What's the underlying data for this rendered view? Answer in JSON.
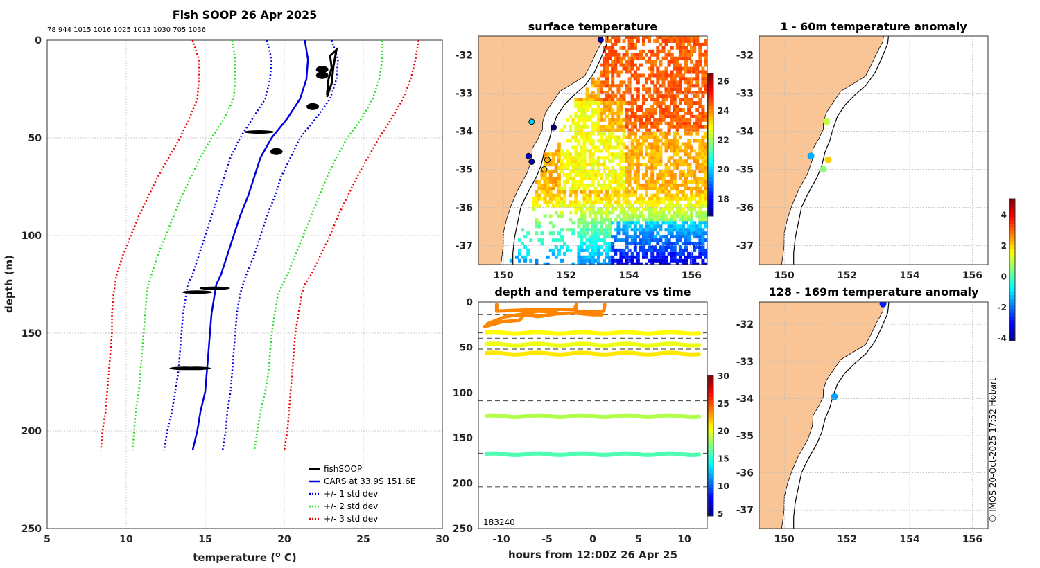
{
  "chart_data": [
    {
      "id": "profile",
      "type": "line",
      "title": "Fish SOOP 26 Apr 2025",
      "subtitle": "78 944 1015 1016 1025 1013 1030 705 1036",
      "xlabel": "temperature (",
      "xlabel_sup": "o",
      "xlabel_end": " C)",
      "ylabel": "depth (m)",
      "xlim": [
        5,
        30
      ],
      "ylim": [
        0,
        250
      ],
      "y_reversed": true,
      "xticks": [
        5,
        10,
        15,
        20,
        25,
        30
      ],
      "yticks": [
        0,
        50,
        100,
        150,
        200,
        250
      ],
      "grid": true,
      "legend_position": "bottom-right",
      "legend": [
        "fishSOOP",
        "CARS at 33.9S 151.6E",
        "+/- 1 std dev",
        "+/- 2 std dev",
        "+/- 3 std dev"
      ],
      "series": [
        {
          "name": "CARS at 33.9S 151.6E",
          "color": "#0000dd",
          "style": "solid",
          "points": [
            [
              21.3,
              0
            ],
            [
              21.5,
              10
            ],
            [
              21.4,
              20
            ],
            [
              21.0,
              30
            ],
            [
              20.2,
              40
            ],
            [
              19.2,
              50
            ],
            [
              18.5,
              60
            ],
            [
              18.1,
              70
            ],
            [
              17.7,
              80
            ],
            [
              17.2,
              90
            ],
            [
              16.8,
              100
            ],
            [
              16.4,
              110
            ],
            [
              16.0,
              120
            ],
            [
              15.7,
              125
            ],
            [
              15.6,
              130
            ],
            [
              15.4,
              140
            ],
            [
              15.3,
              150
            ],
            [
              15.2,
              160
            ],
            [
              15.1,
              170
            ],
            [
              15.0,
              180
            ],
            [
              14.7,
              190
            ],
            [
              14.5,
              200
            ],
            [
              14.2,
              210
            ]
          ]
        },
        {
          "name": "+/- 1 std dev",
          "color": "#0000dd",
          "style": "dotted",
          "points": [
            [
              23.0,
              0
            ],
            [
              23.4,
              10
            ],
            [
              23.3,
              20
            ],
            [
              22.9,
              30
            ],
            [
              22.0,
              40
            ],
            [
              21.0,
              50
            ],
            [
              20.4,
              60
            ],
            [
              19.8,
              70
            ],
            [
              19.4,
              80
            ],
            [
              18.9,
              90
            ],
            [
              18.5,
              100
            ],
            [
              18.1,
              110
            ],
            [
              17.6,
              120
            ],
            [
              17.4,
              125
            ],
            [
              17.2,
              130
            ],
            [
              17.0,
              140
            ],
            [
              16.9,
              150
            ],
            [
              16.8,
              160
            ],
            [
              16.7,
              170
            ],
            [
              16.6,
              180
            ],
            [
              16.4,
              190
            ],
            [
              16.3,
              200
            ],
            [
              16.1,
              210
            ]
          ],
          "points2": [
            [
              18.9,
              0
            ],
            [
              19.2,
              10
            ],
            [
              19.1,
              20
            ],
            [
              18.8,
              30
            ],
            [
              18.0,
              40
            ],
            [
              17.2,
              50
            ],
            [
              16.6,
              60
            ],
            [
              16.2,
              70
            ],
            [
              15.8,
              80
            ],
            [
              15.4,
              90
            ],
            [
              15.0,
              100
            ],
            [
              14.6,
              110
            ],
            [
              14.2,
              120
            ],
            [
              13.9,
              125
            ],
            [
              13.8,
              130
            ],
            [
              13.6,
              140
            ],
            [
              13.5,
              150
            ],
            [
              13.4,
              160
            ],
            [
              13.3,
              170
            ],
            [
              13.1,
              180
            ],
            [
              12.9,
              190
            ],
            [
              12.6,
              200
            ],
            [
              12.4,
              210
            ]
          ]
        },
        {
          "name": "+/- 2 std dev",
          "color": "#22dd22",
          "style": "dotted",
          "points": [
            [
              26.2,
              0
            ],
            [
              26.2,
              10
            ],
            [
              26.0,
              20
            ],
            [
              25.6,
              30
            ],
            [
              24.9,
              40
            ],
            [
              24.0,
              50
            ],
            [
              23.3,
              60
            ],
            [
              22.7,
              70
            ],
            [
              22.2,
              80
            ],
            [
              21.7,
              90
            ],
            [
              21.2,
              100
            ],
            [
              20.7,
              110
            ],
            [
              20.2,
              120
            ],
            [
              19.9,
              125
            ],
            [
              19.6,
              130
            ],
            [
              19.4,
              140
            ],
            [
              19.2,
              150
            ],
            [
              19.1,
              160
            ],
            [
              19.0,
              170
            ],
            [
              18.8,
              180
            ],
            [
              18.5,
              190
            ],
            [
              18.3,
              200
            ],
            [
              18.1,
              210
            ]
          ],
          "points2": [
            [
              16.7,
              0
            ],
            [
              16.9,
              10
            ],
            [
              16.9,
              20
            ],
            [
              16.8,
              30
            ],
            [
              16.2,
              40
            ],
            [
              15.4,
              50
            ],
            [
              14.7,
              60
            ],
            [
              14.1,
              70
            ],
            [
              13.5,
              80
            ],
            [
              13.0,
              90
            ],
            [
              12.5,
              100
            ],
            [
              12.0,
              110
            ],
            [
              11.6,
              120
            ],
            [
              11.4,
              125
            ],
            [
              11.3,
              130
            ],
            [
              11.2,
              140
            ],
            [
              11.1,
              150
            ],
            [
              11.0,
              160
            ],
            [
              10.9,
              170
            ],
            [
              10.8,
              180
            ],
            [
              10.6,
              190
            ],
            [
              10.5,
              200
            ],
            [
              10.4,
              210
            ]
          ]
        },
        {
          "name": "+/- 3 std dev",
          "color": "#ee0000",
          "style": "dotted",
          "points": [
            [
              28.5,
              0
            ],
            [
              28.3,
              10
            ],
            [
              28.0,
              20
            ],
            [
              27.5,
              30
            ],
            [
              26.8,
              40
            ],
            [
              26.0,
              50
            ],
            [
              25.3,
              60
            ],
            [
              24.6,
              70
            ],
            [
              24.0,
              80
            ],
            [
              23.4,
              90
            ],
            [
              22.9,
              100
            ],
            [
              22.3,
              110
            ],
            [
              21.7,
              120
            ],
            [
              21.3,
              125
            ],
            [
              21.1,
              130
            ],
            [
              20.9,
              140
            ],
            [
              20.7,
              150
            ],
            [
              20.6,
              160
            ],
            [
              20.5,
              170
            ],
            [
              20.4,
              180
            ],
            [
              20.3,
              190
            ],
            [
              20.2,
              200
            ],
            [
              20.0,
              210
            ]
          ],
          "points2": [
            [
              14.2,
              0
            ],
            [
              14.6,
              10
            ],
            [
              14.6,
              20
            ],
            [
              14.5,
              30
            ],
            [
              14.0,
              40
            ],
            [
              13.4,
              50
            ],
            [
              12.7,
              60
            ],
            [
              12.0,
              70
            ],
            [
              11.4,
              80
            ],
            [
              10.8,
              90
            ],
            [
              10.3,
              100
            ],
            [
              9.8,
              110
            ],
            [
              9.4,
              120
            ],
            [
              9.3,
              125
            ],
            [
              9.2,
              130
            ],
            [
              9.1,
              140
            ],
            [
              9.1,
              150
            ],
            [
              9.0,
              160
            ],
            [
              8.9,
              170
            ],
            [
              8.8,
              180
            ],
            [
              8.7,
              190
            ],
            [
              8.5,
              200
            ],
            [
              8.4,
              210
            ]
          ]
        },
        {
          "name": "fishSOOP",
          "color": "#000000",
          "style": "solid",
          "points": [
            [
              22.7,
              28
            ],
            [
              22.8,
              20
            ],
            [
              23.0,
              14
            ],
            [
              22.9,
              8
            ],
            [
              23.3,
              5
            ],
            [
              23.1,
              14
            ],
            [
              23.0,
              22
            ],
            [
              22.7,
              29
            ]
          ],
          "blobs": [
            [
              22.4,
              15
            ],
            [
              22.4,
              18
            ],
            [
              21.8,
              34
            ],
            [
              18.4,
              47
            ],
            [
              19.5,
              57
            ],
            [
              14.5,
              129
            ],
            [
              15.6,
              127
            ],
            [
              14.4,
              168
            ],
            [
              13.7,
              168
            ]
          ]
        }
      ]
    },
    {
      "id": "sst_map",
      "type": "heatmap",
      "title": "surface temperature",
      "xticks": [
        150,
        152,
        154,
        156
      ],
      "yticks": [
        -32,
        -33,
        -34,
        -35,
        -36,
        -37
      ],
      "colorbar_ticks": [
        18,
        20,
        22,
        24,
        26
      ],
      "clim": [
        16.8,
        26.5
      ],
      "markers": [
        {
          "lon": 153.1,
          "lat": -31.6,
          "value": 17.0
        },
        {
          "lon": 150.9,
          "lat": -33.75,
          "value": 20.0
        },
        {
          "lon": 151.6,
          "lat": -33.9,
          "value": 14.0
        },
        {
          "lon": 150.8,
          "lat": -34.65,
          "value": 17.6
        },
        {
          "lon": 150.9,
          "lat": -34.8,
          "value": 17.3
        },
        {
          "lon": 151.4,
          "lat": -34.75,
          "value": 23.6
        },
        {
          "lon": 151.3,
          "lat": -35.0,
          "value": 23.4
        }
      ]
    },
    {
      "id": "depth_time",
      "type": "scatter",
      "title": "depth and temperature vs time",
      "xlabel": "hours from 12:00Z 26 Apr 25",
      "xlim": [
        -12.5,
        12.5
      ],
      "ylim": [
        0,
        250
      ],
      "xticks": [
        -10,
        -5,
        0,
        5,
        10
      ],
      "yticks": [
        0,
        50,
        100,
        150,
        200,
        250
      ],
      "annotation": "183240",
      "dashed_depths": [
        14,
        34,
        40,
        52,
        109,
        167,
        204
      ],
      "colorbar_ticks": [
        5,
        10,
        15,
        20,
        25,
        30
      ],
      "clim": [
        4.5,
        30
      ],
      "tracks": [
        {
          "depth": 34,
          "value": 20.5
        },
        {
          "depth": 47,
          "value": 20.0
        },
        {
          "depth": 57,
          "value": 21.0
        },
        {
          "depth": 126,
          "value": 18.5
        },
        {
          "depth": 168,
          "value": 16.0
        }
      ],
      "surface_value": 23.5
    },
    {
      "id": "anom_shallow",
      "type": "scatter",
      "title": "1 - 60m temperature anomaly",
      "xticks": [
        150,
        152,
        154,
        156
      ],
      "yticks": [
        -32,
        -33,
        -34,
        -35,
        -36,
        -37
      ],
      "points": [
        {
          "lon": 151.35,
          "lat": -33.75,
          "anomaly": 1.0
        },
        {
          "lon": 150.85,
          "lat": -34.65,
          "anomaly": -1.5
        },
        {
          "lon": 151.4,
          "lat": -34.75,
          "anomaly": 2.0
        },
        {
          "lon": 151.25,
          "lat": -35.0,
          "anomaly": 0.5
        }
      ]
    },
    {
      "id": "anom_deep",
      "type": "scatter",
      "title": "128 - 169m temperature anomaly",
      "xticks": [
        150,
        152,
        154,
        156
      ],
      "yticks": [
        -32,
        -33,
        -34,
        -35,
        -36,
        -37
      ],
      "points": [
        {
          "lon": 153.15,
          "lat": -31.45,
          "anomaly": -2.8
        },
        {
          "lon": 151.6,
          "lat": -33.95,
          "anomaly": -1.6
        }
      ],
      "colorbar_ticks": [
        -4,
        -2,
        0,
        2,
        4
      ],
      "clim": [
        -4.2,
        5.0
      ]
    }
  ],
  "footer": {
    "credit": "© IMOS 20-Oct-2025 17:52 Hobart"
  },
  "colors": {
    "land": "#f9c597",
    "coast": "#000000",
    "grid": "#bbbbbb"
  }
}
